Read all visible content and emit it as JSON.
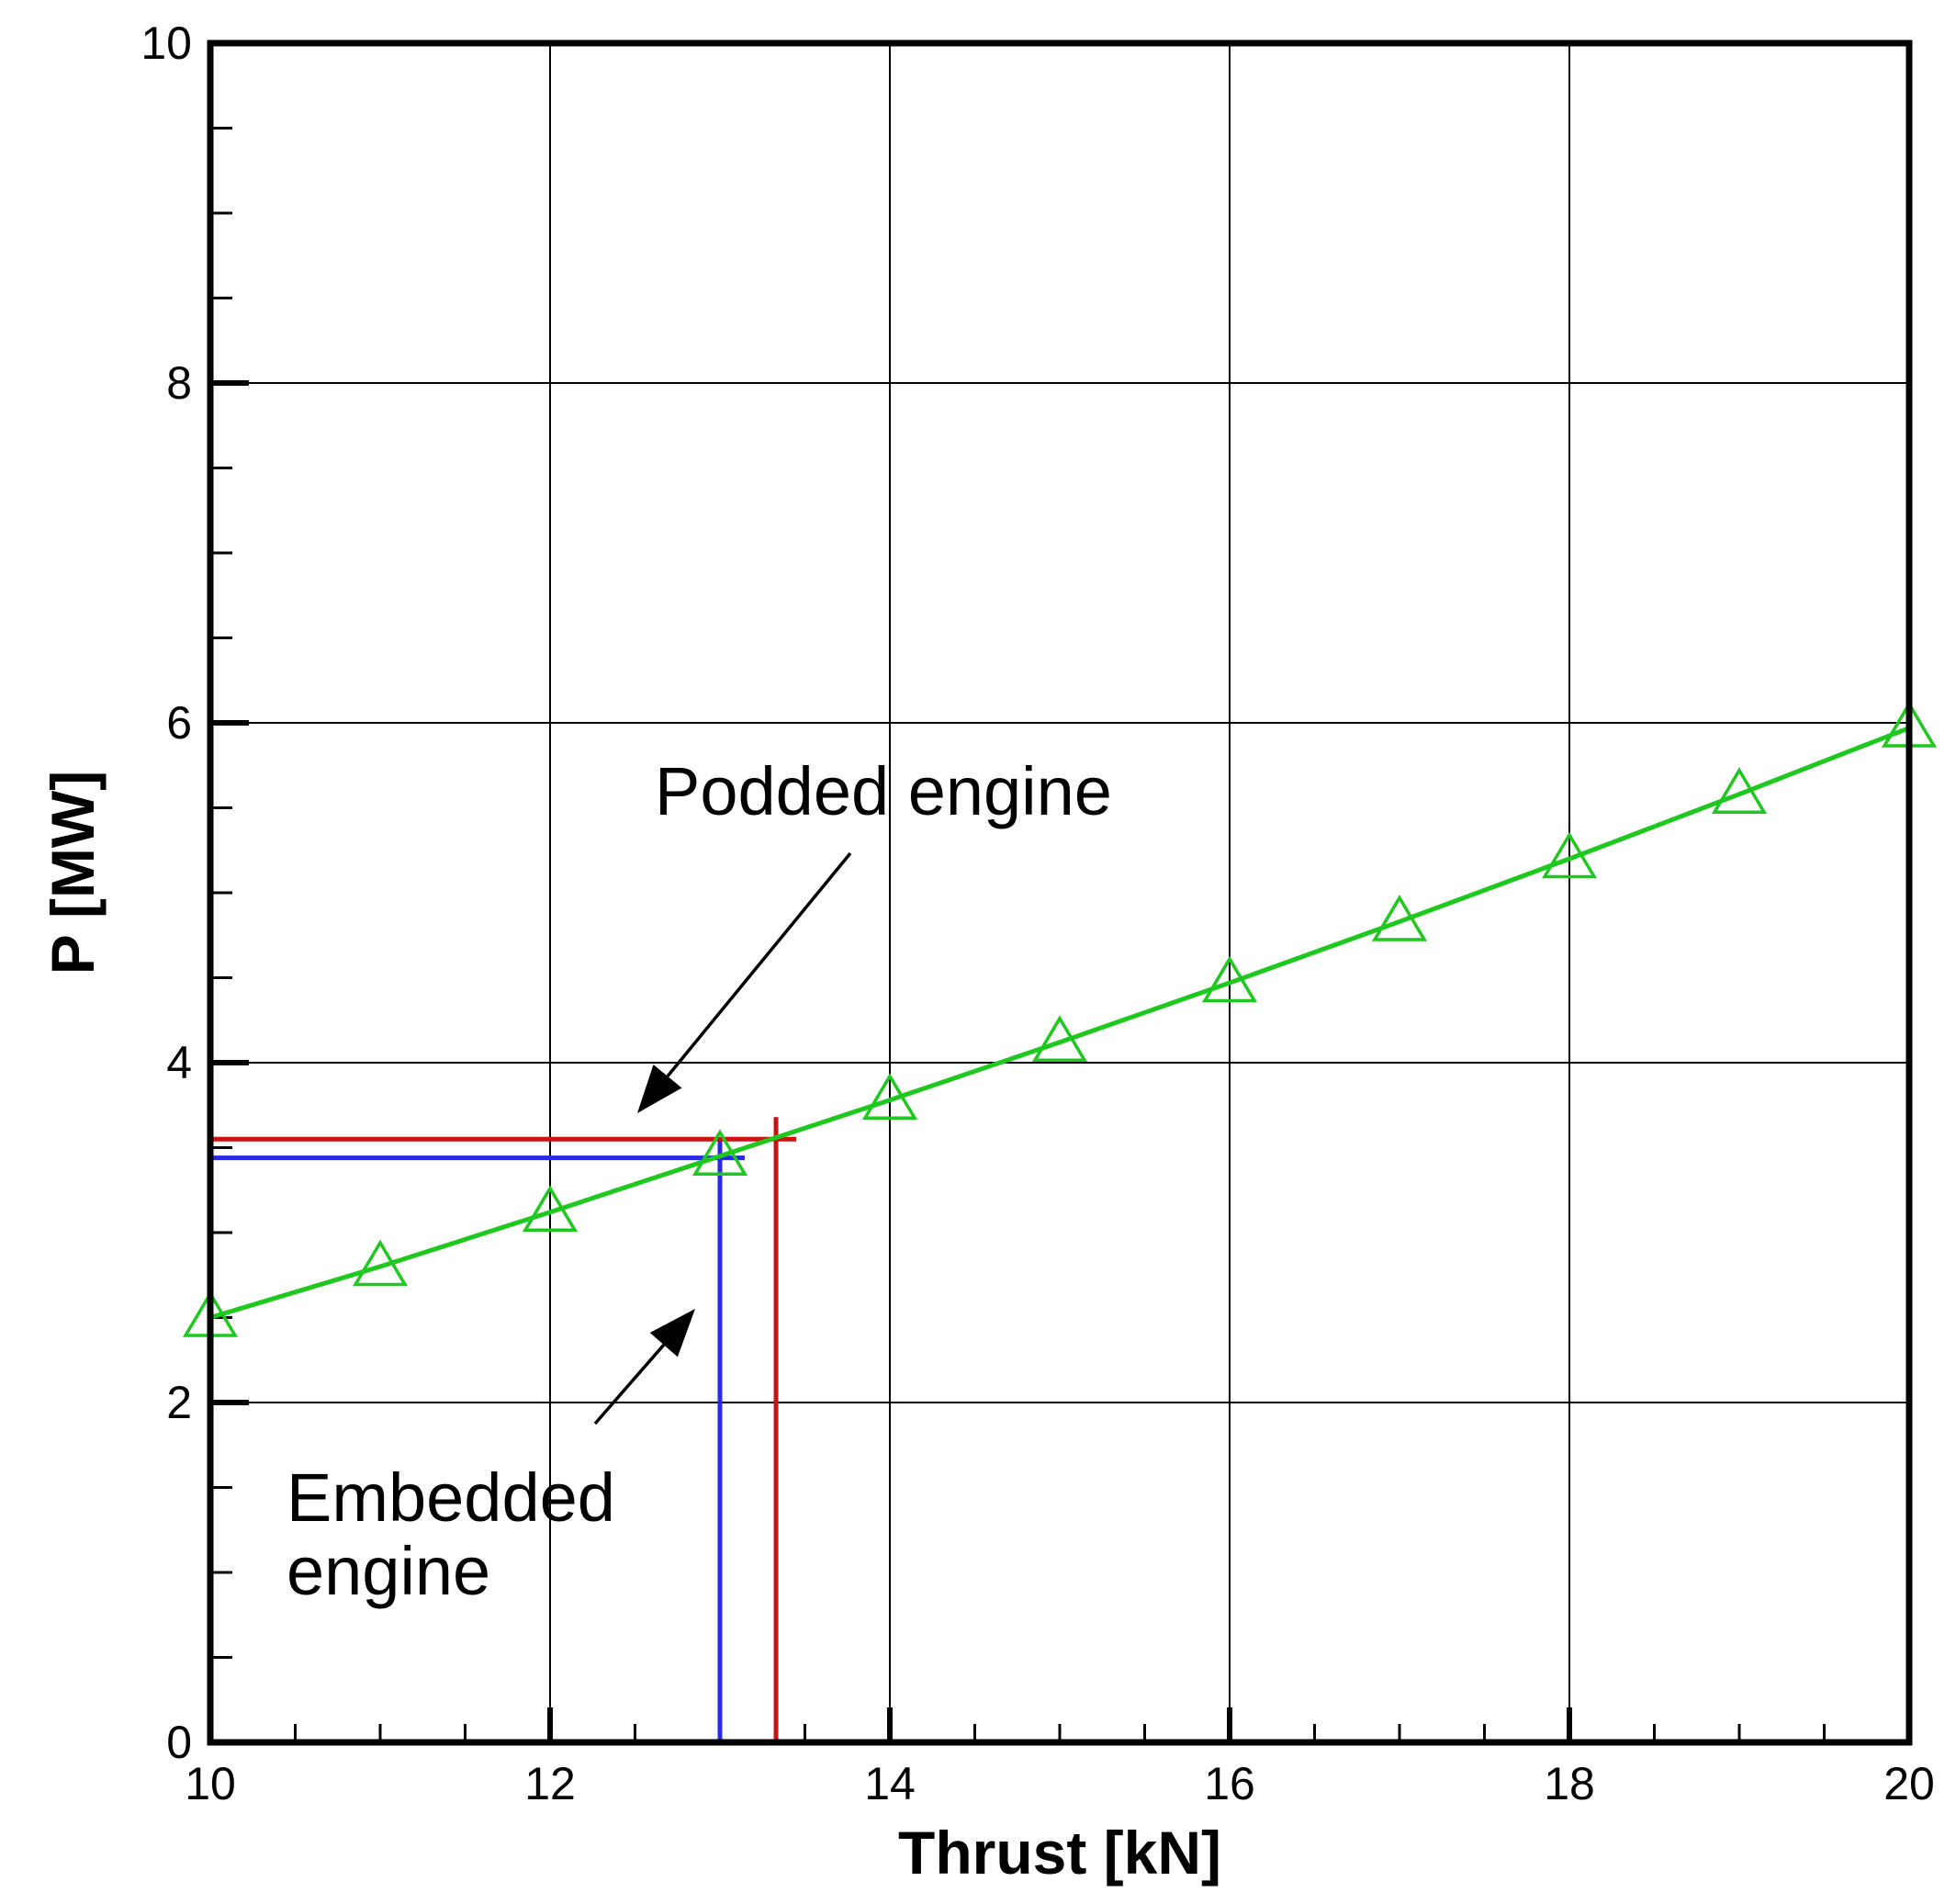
{
  "chart_data": {
    "type": "line",
    "title": "",
    "xlabel": "Thrust [kN]",
    "ylabel": "P [MW]",
    "xlim": [
      10,
      20
    ],
    "ylim": [
      0,
      10
    ],
    "x_ticks": [
      10,
      12,
      14,
      16,
      18,
      20
    ],
    "y_ticks": [
      0,
      2,
      4,
      6,
      8,
      10
    ],
    "x_minor_step": 0.5,
    "y_minor_step": 0.5,
    "grid": true,
    "series": [
      {
        "color": "#1ec81e",
        "marker": "open-triangle",
        "x": [
          10,
          11,
          12,
          13,
          14,
          15,
          16,
          17,
          18,
          19,
          20
        ],
        "y": [
          2.5,
          2.8,
          3.12,
          3.45,
          3.78,
          4.12,
          4.47,
          4.83,
          5.2,
          5.58,
          5.97
        ]
      }
    ],
    "reference_lines": [
      {
        "label": "Podded engine",
        "color": "#cc1111",
        "x": 13.33,
        "y": 3.55
      },
      {
        "label": "Embedded engine",
        "color": "#2a2ae6",
        "x": 13.0,
        "y": 3.44
      }
    ],
    "annotations": [
      {
        "id": "podded",
        "lines": [
          "Podded engine"
        ]
      },
      {
        "id": "embedded",
        "lines": [
          "Embedded",
          "engine"
        ]
      }
    ]
  }
}
